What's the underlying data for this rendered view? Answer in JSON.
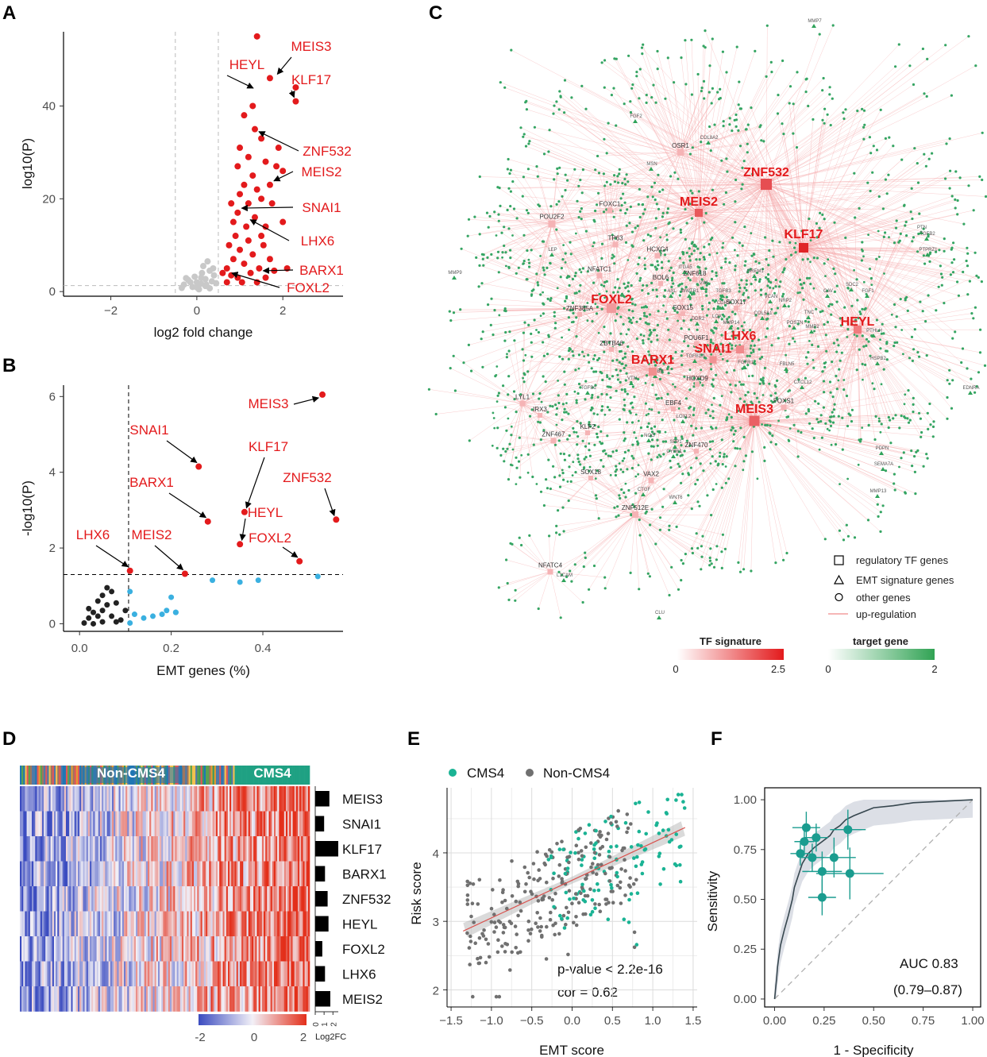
{
  "figure": {
    "panels": [
      "A",
      "B",
      "C",
      "D",
      "E",
      "F"
    ]
  },
  "colors": {
    "red": "#e31a1c",
    "grey": "#c8c8c8",
    "blue": "#3ab0e0",
    "green": "#31a354",
    "teal": "#1a9c8f",
    "dark": "#333333"
  },
  "chart_data": [
    {
      "panel": "A",
      "type": "scatter",
      "title": "",
      "xlabel": "log2 fold change",
      "ylabel": "log10(P)",
      "xlim": [
        -3.1,
        3.4
      ],
      "ylim": [
        -1,
        56
      ],
      "xticks": [
        -2,
        0,
        2
      ],
      "yticks": [
        0,
        20,
        40
      ],
      "vlines": [
        -0.5,
        0.5
      ],
      "hline": 1.3,
      "gray_points": [
        [
          -0.3,
          1.5
        ],
        [
          -0.2,
          2.5
        ],
        [
          -0.1,
          1.0
        ],
        [
          0.0,
          2.0
        ],
        [
          0.1,
          3.0
        ],
        [
          0.2,
          1.2
        ],
        [
          0.3,
          4.5
        ],
        [
          0.35,
          2.2
        ],
        [
          -0.35,
          0.8
        ],
        [
          0.05,
          0.5
        ],
        [
          0.15,
          5.5
        ],
        [
          0.25,
          6.5
        ],
        [
          0.4,
          3.5
        ],
        [
          0.45,
          1.8
        ],
        [
          -0.05,
          3.2
        ],
        [
          0.0,
          0.9
        ],
        [
          0.2,
          2.7
        ],
        [
          -0.15,
          2.0
        ],
        [
          0.3,
          0.7
        ],
        [
          0.1,
          1.7
        ],
        [
          0.38,
          5.0
        ],
        [
          -0.25,
          2.9
        ],
        [
          0.12,
          4.0
        ],
        [
          0.22,
          1.5
        ]
      ],
      "red_points": [
        [
          1.4,
          55
        ],
        [
          1.7,
          46
        ],
        [
          2.3,
          41
        ],
        [
          2.3,
          44
        ],
        [
          1.3,
          40
        ],
        [
          1.1,
          38
        ],
        [
          1.35,
          35
        ],
        [
          1.5,
          33
        ],
        [
          1.9,
          31
        ],
        [
          1.0,
          31
        ],
        [
          1.2,
          29
        ],
        [
          1.6,
          28
        ],
        [
          1.85,
          27
        ],
        [
          0.95,
          27
        ],
        [
          1.3,
          25
        ],
        [
          2.0,
          26
        ],
        [
          1.7,
          23
        ],
        [
          1.1,
          23
        ],
        [
          1.4,
          22
        ],
        [
          1.5,
          20
        ],
        [
          1.0,
          21
        ],
        [
          0.8,
          19
        ],
        [
          1.2,
          19
        ],
        [
          1.75,
          19
        ],
        [
          0.95,
          17
        ],
        [
          1.35,
          16
        ],
        [
          0.85,
          15
        ],
        [
          1.6,
          14
        ],
        [
          1.15,
          14
        ],
        [
          2.0,
          15
        ],
        [
          1.5,
          12
        ],
        [
          0.9,
          12
        ],
        [
          1.2,
          11
        ],
        [
          0.75,
          10
        ],
        [
          1.55,
          10
        ],
        [
          1.0,
          9
        ],
        [
          1.3,
          8
        ],
        [
          1.7,
          7
        ],
        [
          0.85,
          7
        ],
        [
          1.1,
          6
        ],
        [
          1.45,
          5
        ],
        [
          0.7,
          5
        ],
        [
          1.25,
          4
        ],
        [
          0.95,
          3
        ],
        [
          1.6,
          3
        ],
        [
          0.7,
          2
        ],
        [
          1.05,
          2
        ],
        [
          1.4,
          2
        ],
        [
          0.6,
          4
        ],
        [
          0.8,
          3.5
        ],
        [
          1.8,
          4.5
        ],
        [
          2.1,
          5
        ]
      ],
      "labels": [
        {
          "text": "MEIS3",
          "pt": [
            1.78,
            46
          ]
        },
        {
          "text": "HEYL",
          "pt": [
            1.35,
            43
          ]
        },
        {
          "text": "KLF17",
          "pt": [
            2.3,
            41
          ]
        },
        {
          "text": "ZNF532",
          "pt": [
            1.35,
            35
          ]
        },
        {
          "text": "MEIS2",
          "pt": [
            1.7,
            23
          ]
        },
        {
          "text": "SNAI1",
          "pt": [
            0.95,
            18.5
          ]
        },
        {
          "text": "LHX6",
          "pt": [
            1.15,
            16
          ]
        },
        {
          "text": "BARX1",
          "pt": [
            1.45,
            5
          ]
        },
        {
          "text": "FOXL2",
          "pt": [
            0.72,
            4.5
          ]
        }
      ]
    },
    {
      "panel": "B",
      "type": "scatter",
      "xlabel": "EMT genes (%)",
      "ylabel": "-log10(P)",
      "xlim": [
        -0.035,
        0.575
      ],
      "ylim": [
        -0.2,
        6.3
      ],
      "xticks": [
        0.0,
        0.2,
        0.4
      ],
      "xtick_labels": [
        "0.0",
        "0.2",
        "0.4"
      ],
      "yticks": [
        0,
        2,
        4,
        6
      ],
      "vline": 0.107,
      "hline": 1.3,
      "black_points": [
        [
          0.01,
          0.02
        ],
        [
          0.02,
          0.15
        ],
        [
          0.02,
          0.4
        ],
        [
          0.03,
          0.3
        ],
        [
          0.03,
          0.0
        ],
        [
          0.04,
          0.6
        ],
        [
          0.04,
          0.2
        ],
        [
          0.05,
          0.75
        ],
        [
          0.05,
          0.35
        ],
        [
          0.06,
          0.95
        ],
        [
          0.06,
          0.5
        ],
        [
          0.07,
          0.85
        ],
        [
          0.07,
          0.2
        ],
        [
          0.08,
          0.55
        ],
        [
          0.08,
          0.05
        ],
        [
          0.09,
          0.1
        ],
        [
          0.1,
          0.35
        ],
        [
          0.05,
          0.05
        ]
      ],
      "blue_points": [
        [
          0.11,
          0.85
        ],
        [
          0.11,
          0.02
        ],
        [
          0.12,
          0.25
        ],
        [
          0.14,
          0.15
        ],
        [
          0.16,
          0.2
        ],
        [
          0.18,
          0.25
        ],
        [
          0.19,
          0.35
        ],
        [
          0.2,
          0.7
        ],
        [
          0.21,
          0.3
        ],
        [
          0.21,
          0.3
        ],
        [
          0.29,
          1.15
        ],
        [
          0.35,
          1.1
        ],
        [
          0.39,
          1.15
        ],
        [
          0.52,
          1.25
        ]
      ],
      "red_points": [
        {
          "name": "MEIS3",
          "x": 0.53,
          "y": 6.05
        },
        {
          "name": "SNAI1",
          "x": 0.26,
          "y": 4.15
        },
        {
          "name": "KLF17",
          "x": 0.36,
          "y": 2.95
        },
        {
          "name": "BARX1",
          "x": 0.28,
          "y": 2.7
        },
        {
          "name": "ZNF532",
          "x": 0.56,
          "y": 2.75
        },
        {
          "name": "HEYL",
          "x": 0.35,
          "y": 2.1
        },
        {
          "name": "FOXL2",
          "x": 0.48,
          "y": 1.65
        },
        {
          "name": "LHX6",
          "x": 0.11,
          "y": 1.4
        },
        {
          "name": "MEIS2",
          "x": 0.23,
          "y": 1.32
        }
      ]
    },
    {
      "panel": "C",
      "type": "network",
      "legend_shapes": [
        {
          "shape": "square",
          "label": "regulatory TF genes"
        },
        {
          "shape": "triangle",
          "label": "EMT signature genes"
        },
        {
          "shape": "circle",
          "label": "other genes"
        },
        {
          "shape": "line",
          "label": "up-regulation"
        }
      ],
      "colorbars": [
        {
          "title": "TF signature",
          "min": "0",
          "max": "2.5"
        },
        {
          "title": "target gene",
          "min": "0",
          "max": "2"
        }
      ],
      "tf_nodes": [
        {
          "name": "ZNF532",
          "big": true
        },
        {
          "name": "MEIS2",
          "big": true
        },
        {
          "name": "KLF17",
          "big": true
        },
        {
          "name": "FOXL2",
          "big": true
        },
        {
          "name": "HEYL",
          "big": true
        },
        {
          "name": "LHX6",
          "big": true
        },
        {
          "name": "SNAI1",
          "big": true
        },
        {
          "name": "BARX1",
          "big": true
        },
        {
          "name": "MEIS3",
          "big": true
        },
        {
          "name": "OSR1"
        },
        {
          "name": "FOXC1"
        },
        {
          "name": "POU2F2"
        },
        {
          "name": "TP63"
        },
        {
          "name": "HCXC4"
        },
        {
          "name": "NFATC1"
        },
        {
          "name": "ZNF618"
        },
        {
          "name": "BOL6"
        },
        {
          "name": "ZNF385A"
        },
        {
          "name": "SOX15"
        },
        {
          "name": "SOX17"
        },
        {
          "name": "ZBTB46"
        },
        {
          "name": "POU6F1"
        },
        {
          "name": "HOXD9"
        },
        {
          "name": "LYL1"
        },
        {
          "name": "IRX3"
        },
        {
          "name": "EBF4"
        },
        {
          "name": "FOXS1"
        },
        {
          "name": "ZNF467"
        },
        {
          "name": "KLF2"
        },
        {
          "name": "ZNF470"
        },
        {
          "name": "SOX18"
        },
        {
          "name": "VAX2"
        },
        {
          "name": "ZNF512E"
        },
        {
          "name": "NFATC4"
        }
      ],
      "emt_labels": [
        "MMP7",
        "FGF2",
        "COL8A2",
        "MSN",
        "LEP",
        "MMP9",
        "PTN",
        "TGFB2",
        "PTPRZ1",
        "ITGA5",
        "VIM",
        "GREM1",
        "AXL",
        "WWTR1",
        "TGFB3",
        "CDH2",
        "VCAN",
        "NRP2",
        "SDC2",
        "FGF1",
        "CAV",
        "LOX",
        "DDR2",
        "COL5A1",
        "TNC",
        "MMP14",
        "POSTN",
        "MMP2",
        "PTHLH",
        "HSPB2",
        "TGFB1I1",
        "FGFR1",
        "FBLN5",
        "ITGB3",
        "VTN",
        "TGFB1",
        "CXCL12",
        "LOXL2",
        "EDNRA",
        "NOG",
        "SPP1",
        "CYR61",
        "PDPN",
        "SEMA7A",
        "MMP13",
        "CTGF",
        "WNT6",
        "L1CAM",
        "CLU"
      ]
    },
    {
      "panel": "D",
      "type": "heatmap",
      "group_labels": [
        "Non-CMS4",
        "CMS4"
      ],
      "rows": [
        "MEIS3",
        "SNAI1",
        "KLF17",
        "BARX1",
        "ZNF532",
        "HEYL",
        "FOXL2",
        "LHX6",
        "MEIS2"
      ],
      "log2fc": [
        1.6,
        1.0,
        2.6,
        1.1,
        1.4,
        1.5,
        0.8,
        1.1,
        1.7
      ],
      "colorbar_ticks": [
        "-2",
        "0",
        "2"
      ],
      "bar_ticks": [
        "0",
        "1",
        "2"
      ],
      "bar_label": "Log2FC"
    },
    {
      "panel": "E",
      "type": "scatter",
      "xlabel": "EMT score",
      "ylabel": "Risk score",
      "xlim": [
        -1.55,
        1.55
      ],
      "ylim": [
        1.75,
        4.95
      ],
      "xticks": [
        -1.5,
        -1.0,
        -0.5,
        0.0,
        0.5,
        1.0,
        1.5
      ],
      "xtick_labels": [
        "-1.5",
        "-1.0",
        "-0.5",
        "0.0",
        "0.5",
        "1.0",
        "1.5"
      ],
      "yticks": [
        2,
        3,
        4
      ],
      "legend": [
        {
          "name": "CMS4",
          "color": "#1ab394"
        },
        {
          "name": "Non-CMS4",
          "color": "#707070"
        }
      ],
      "fit_line": {
        "intercept": 3.6,
        "slope": 0.55
      },
      "annotations": [
        "p-value < 2.2e-16",
        "cor = 0.62"
      ]
    },
    {
      "panel": "F",
      "type": "line",
      "xlabel": "1 - Specificity",
      "ylabel": "Sensitivity",
      "xlim": [
        -0.05,
        1.04
      ],
      "ylim": [
        -0.04,
        1.06
      ],
      "xticks": [
        0.0,
        0.25,
        0.5,
        0.75,
        1.0
      ],
      "xtick_labels": [
        "0.00",
        "0.25",
        "0.50",
        "0.75",
        "1.00"
      ],
      "yticks": [
        0.0,
        0.25,
        0.5,
        0.75,
        1.0
      ],
      "ytick_labels": [
        "0.00",
        "0.25",
        "0.50",
        "0.75",
        "1.00"
      ],
      "roc": [
        [
          0,
          0
        ],
        [
          0.005,
          0.05
        ],
        [
          0.01,
          0.1
        ],
        [
          0.015,
          0.16
        ],
        [
          0.02,
          0.2
        ],
        [
          0.03,
          0.27
        ],
        [
          0.05,
          0.35
        ],
        [
          0.07,
          0.42
        ],
        [
          0.09,
          0.5
        ],
        [
          0.1,
          0.56
        ],
        [
          0.12,
          0.62
        ],
        [
          0.14,
          0.68
        ],
        [
          0.17,
          0.73
        ],
        [
          0.2,
          0.76
        ],
        [
          0.24,
          0.79
        ],
        [
          0.28,
          0.82
        ],
        [
          0.3,
          0.85
        ],
        [
          0.33,
          0.87
        ],
        [
          0.36,
          0.9
        ],
        [
          0.4,
          0.92
        ],
        [
          0.45,
          0.94
        ],
        [
          0.5,
          0.96
        ],
        [
          0.6,
          0.97
        ],
        [
          0.7,
          0.985
        ],
        [
          0.8,
          0.99
        ],
        [
          0.9,
          0.995
        ],
        [
          1.0,
          1.0
        ]
      ],
      "points": [
        {
          "x": 0.16,
          "y": 0.86,
          "ex": 0.07,
          "ey": 0.08
        },
        {
          "x": 0.37,
          "y": 0.85,
          "ex": 0.09,
          "ey": 0.1
        },
        {
          "x": 0.21,
          "y": 0.81,
          "ex": 0.06,
          "ey": 0.07
        },
        {
          "x": 0.15,
          "y": 0.79,
          "ex": 0.05,
          "ey": 0.07
        },
        {
          "x": 0.13,
          "y": 0.73,
          "ex": 0.05,
          "ey": 0.06
        },
        {
          "x": 0.3,
          "y": 0.71,
          "ex": 0.11,
          "ey": 0.1
        },
        {
          "x": 0.19,
          "y": 0.71,
          "ex": 0.06,
          "ey": 0.07
        },
        {
          "x": 0.24,
          "y": 0.64,
          "ex": 0.1,
          "ey": 0.1
        },
        {
          "x": 0.38,
          "y": 0.63,
          "ex": 0.17,
          "ey": 0.13
        },
        {
          "x": 0.24,
          "y": 0.51,
          "ex": 0.07,
          "ey": 0.09
        }
      ],
      "annotations": [
        "AUC 0.83",
        "(0.79–0.87)"
      ]
    }
  ]
}
